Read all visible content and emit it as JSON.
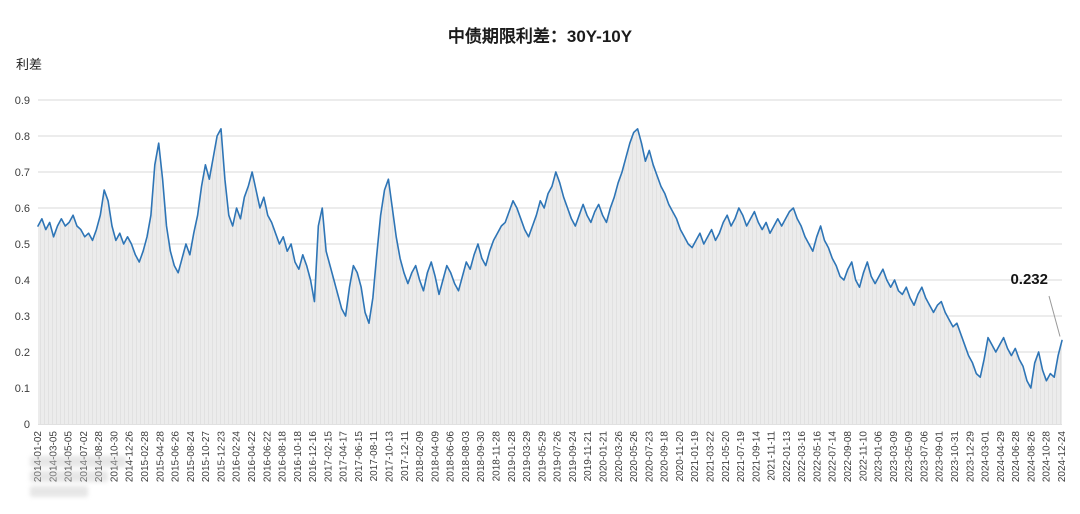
{
  "chart_data": {
    "type": "line",
    "title": "中债期限利差：30Y-10Y",
    "ylabel": "利差",
    "ylim": [
      0,
      0.9
    ],
    "y_ticks": [
      0,
      0.1,
      0.2,
      0.3,
      0.4,
      0.5,
      0.6,
      0.7,
      0.8,
      0.9
    ],
    "grid": true,
    "legend": "none",
    "area_fill": true,
    "x_range": {
      "start": "2014-01-02",
      "end": "2024-12-24"
    },
    "x_tick_labels": [
      "2014-01-02",
      "2014-03-05",
      "2014-05-05",
      "2014-07-02",
      "2014-08-28",
      "2014-10-30",
      "2014-12-26",
      "2015-02-28",
      "2015-04-28",
      "2015-06-26",
      "2015-08-24",
      "2015-10-27",
      "2015-12-23",
      "2016-02-24",
      "2016-04-22",
      "2016-06-22",
      "2016-08-18",
      "2016-10-18",
      "2016-12-16",
      "2017-02-15",
      "2017-04-17",
      "2017-06-15",
      "2017-08-11",
      "2017-10-13",
      "2017-12-11",
      "2018-02-09",
      "2018-04-09",
      "2018-06-06",
      "2018-08-03",
      "2018-09-30",
      "2018-11-28",
      "2019-01-28",
      "2019-03-29",
      "2019-05-29",
      "2019-07-26",
      "2019-09-24",
      "2019-11-21",
      "2020-01-21",
      "2020-03-26",
      "2020-05-26",
      "2020-07-23",
      "2020-09-18",
      "2020-11-20",
      "2021-01-19",
      "2021-03-22",
      "2021-05-20",
      "2021-07-19",
      "2021-09-14",
      "2021-11-11",
      "2022-01-13",
      "2022-03-16",
      "2022-05-16",
      "2022-07-14",
      "2022-09-08",
      "2022-11-10",
      "2023-01-06",
      "2023-03-09",
      "2023-05-09",
      "2023-07-06",
      "2023-09-01",
      "2023-10-31",
      "2023-12-29",
      "2024-03-01",
      "2024-04-29",
      "2024-06-28",
      "2024-08-26",
      "2024-10-28",
      "2024-12-24"
    ],
    "series": [
      {
        "name": "30Y-10Y",
        "values": [
          0.55,
          0.57,
          0.54,
          0.56,
          0.52,
          0.55,
          0.57,
          0.55,
          0.56,
          0.58,
          0.55,
          0.54,
          0.52,
          0.53,
          0.51,
          0.54,
          0.58,
          0.65,
          0.62,
          0.55,
          0.51,
          0.53,
          0.5,
          0.52,
          0.5,
          0.47,
          0.45,
          0.48,
          0.52,
          0.58,
          0.72,
          0.78,
          0.68,
          0.55,
          0.48,
          0.44,
          0.42,
          0.46,
          0.5,
          0.47,
          0.53,
          0.58,
          0.66,
          0.72,
          0.68,
          0.74,
          0.8,
          0.82,
          0.68,
          0.58,
          0.55,
          0.6,
          0.57,
          0.63,
          0.66,
          0.7,
          0.65,
          0.6,
          0.63,
          0.58,
          0.56,
          0.53,
          0.5,
          0.52,
          0.48,
          0.5,
          0.45,
          0.43,
          0.47,
          0.44,
          0.4,
          0.34,
          0.55,
          0.6,
          0.48,
          0.44,
          0.4,
          0.36,
          0.32,
          0.3,
          0.38,
          0.44,
          0.42,
          0.38,
          0.31,
          0.28,
          0.35,
          0.47,
          0.58,
          0.65,
          0.68,
          0.6,
          0.52,
          0.46,
          0.42,
          0.39,
          0.42,
          0.44,
          0.4,
          0.37,
          0.42,
          0.45,
          0.41,
          0.36,
          0.4,
          0.44,
          0.42,
          0.39,
          0.37,
          0.41,
          0.45,
          0.43,
          0.47,
          0.5,
          0.46,
          0.44,
          0.48,
          0.51,
          0.53,
          0.55,
          0.56,
          0.59,
          0.62,
          0.6,
          0.57,
          0.54,
          0.52,
          0.55,
          0.58,
          0.62,
          0.6,
          0.64,
          0.66,
          0.7,
          0.67,
          0.63,
          0.6,
          0.57,
          0.55,
          0.58,
          0.61,
          0.58,
          0.56,
          0.59,
          0.61,
          0.58,
          0.56,
          0.6,
          0.63,
          0.67,
          0.7,
          0.74,
          0.78,
          0.81,
          0.82,
          0.78,
          0.73,
          0.76,
          0.72,
          0.69,
          0.66,
          0.64,
          0.61,
          0.59,
          0.57,
          0.54,
          0.52,
          0.5,
          0.49,
          0.51,
          0.53,
          0.5,
          0.52,
          0.54,
          0.51,
          0.53,
          0.56,
          0.58,
          0.55,
          0.57,
          0.6,
          0.58,
          0.55,
          0.57,
          0.59,
          0.56,
          0.54,
          0.56,
          0.53,
          0.55,
          0.57,
          0.55,
          0.57,
          0.59,
          0.6,
          0.57,
          0.55,
          0.52,
          0.5,
          0.48,
          0.52,
          0.55,
          0.51,
          0.49,
          0.46,
          0.44,
          0.41,
          0.4,
          0.43,
          0.45,
          0.4,
          0.38,
          0.42,
          0.45,
          0.41,
          0.39,
          0.41,
          0.43,
          0.4,
          0.38,
          0.4,
          0.37,
          0.36,
          0.38,
          0.35,
          0.33,
          0.36,
          0.38,
          0.35,
          0.33,
          0.31,
          0.33,
          0.34,
          0.31,
          0.29,
          0.27,
          0.28,
          0.25,
          0.22,
          0.19,
          0.17,
          0.14,
          0.13,
          0.18,
          0.24,
          0.22,
          0.2,
          0.22,
          0.24,
          0.21,
          0.19,
          0.21,
          0.18,
          0.16,
          0.12,
          0.1,
          0.17,
          0.2,
          0.15,
          0.12,
          0.14,
          0.13,
          0.19,
          0.232
        ]
      }
    ],
    "annotation": {
      "label": "0.232",
      "value": 0.232,
      "position": "last-point"
    },
    "colors": {
      "line": "#2e75b6",
      "area": "#ececec",
      "area_stripe": "#e1e1e1",
      "grid": "#d9d9d9",
      "axis": "#c0c0c0",
      "tick_text": "#3c3c3c",
      "leader": "#999999"
    }
  }
}
